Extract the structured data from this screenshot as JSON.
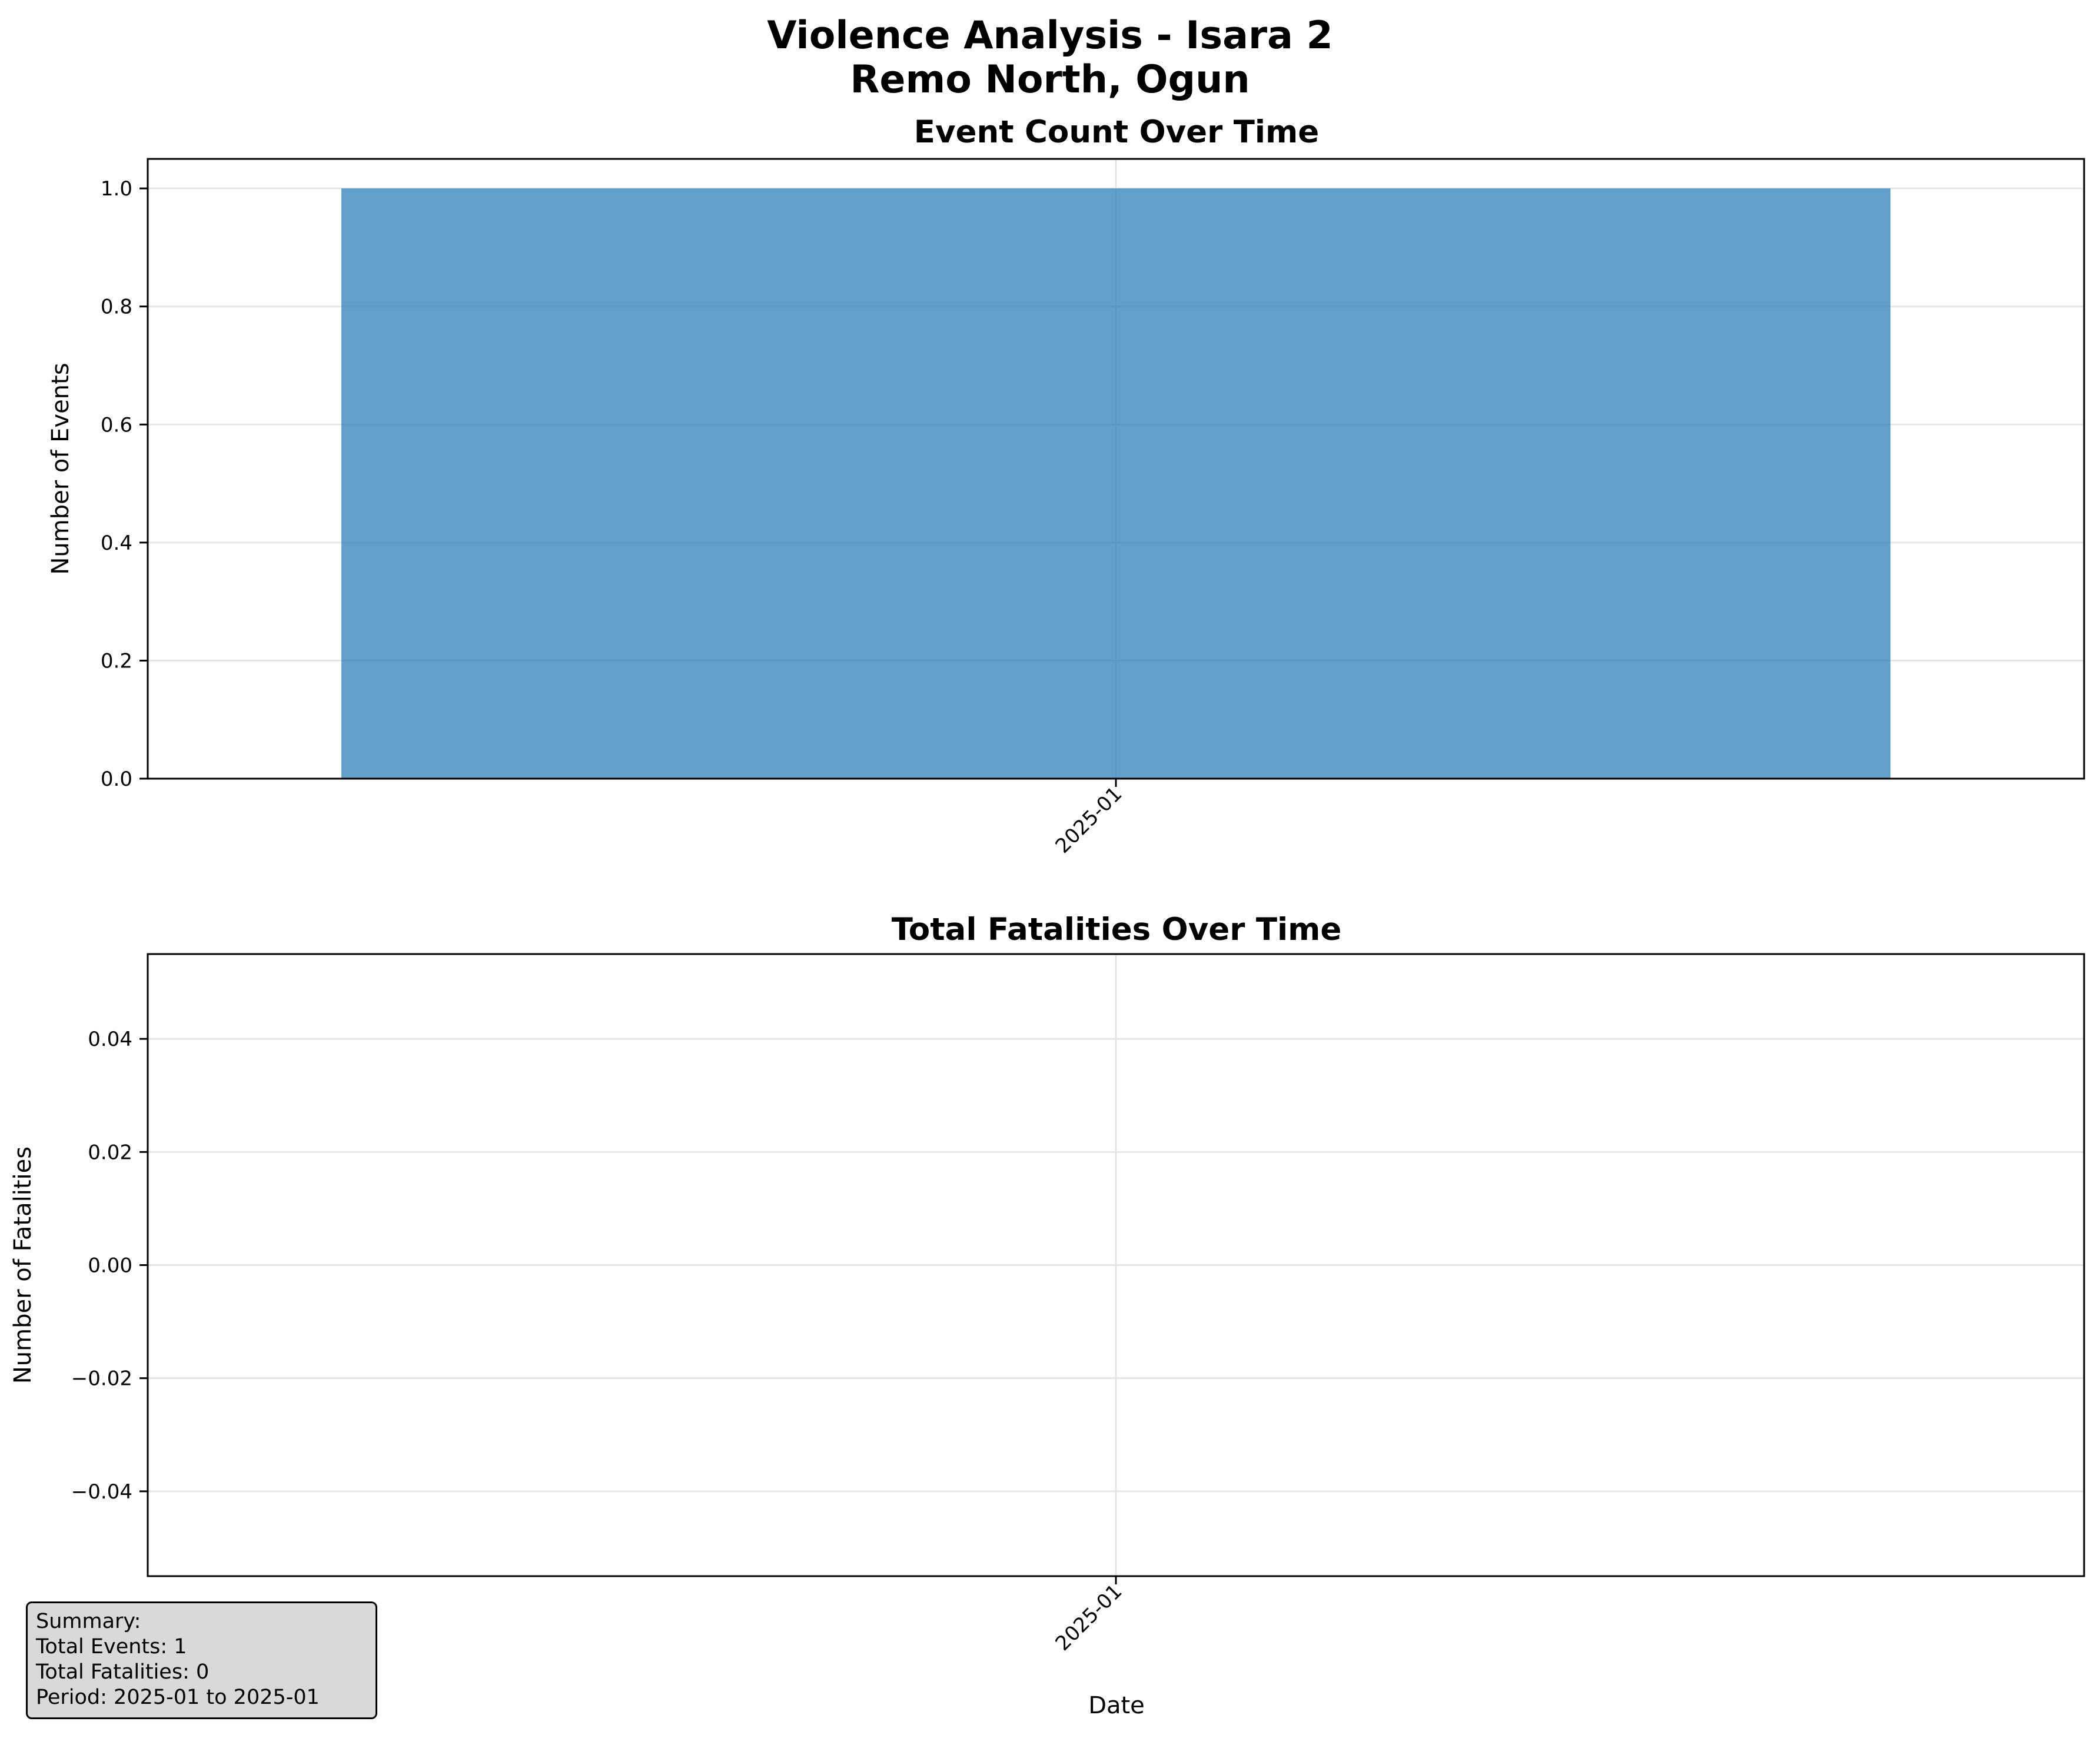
{
  "figure": {
    "title_line1": "Violence Analysis - Isara 2",
    "title_line2": "Remo North, Ogun"
  },
  "chart_data": [
    {
      "type": "bar",
      "title": "Event Count Over Time",
      "xlabel": "",
      "ylabel": "Number of Events",
      "categories": [
        "2025-01"
      ],
      "values": [
        1
      ],
      "ylim": [
        0,
        1.05
      ],
      "yticks": [
        "0.0",
        "0.2",
        "0.4",
        "0.6",
        "0.8",
        "1.0"
      ],
      "xtick_labels": [
        "2025-01"
      ],
      "bar_color": "#1f77b4",
      "bar_alpha": 0.7,
      "grid": true
    },
    {
      "type": "bar",
      "title": "Total Fatalities Over Time",
      "xlabel": "Date",
      "ylabel": "Number of Fatalities",
      "categories": [
        "2025-01"
      ],
      "values": [
        0
      ],
      "ylim": [
        -0.055,
        0.055
      ],
      "yticks": [
        "−0.04",
        "−0.02",
        "0.00",
        "0.02",
        "0.04"
      ],
      "xtick_labels": [
        "2025-01"
      ],
      "bar_color": "#d62728",
      "grid": true
    }
  ],
  "summary": {
    "heading": "Summary:",
    "total_events": "Total Events: 1",
    "total_fatalities": "Total Fatalities: 0",
    "period": "Period: 2025-01 to 2025-01"
  }
}
